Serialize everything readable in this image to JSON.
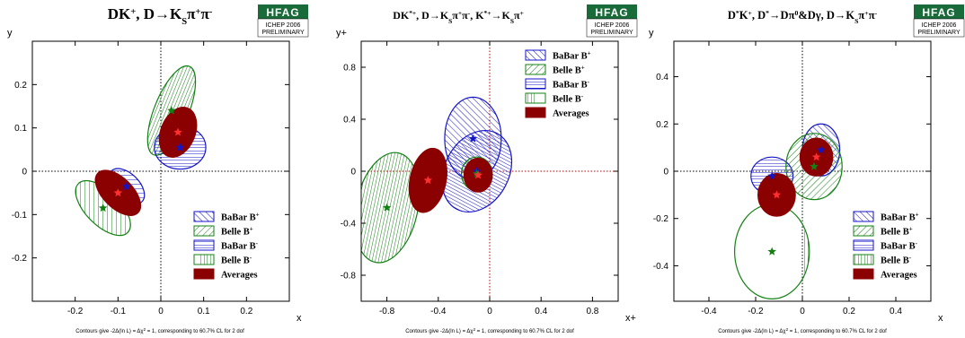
{
  "colors": {
    "babar": "#1515c8",
    "belle": "#148014",
    "average": "#8b0000",
    "axis_line_panel2": "#c00000"
  },
  "badge": {
    "logo": "HFAG",
    "conference": "ICHEP 2006",
    "status": "PRELIMINARY"
  },
  "footnote": {
    "prefix": "Contours give -2Δ(ln L) = Δχ",
    "sup": "2",
    "suffix": " = 1, corresponding to 60.7% CL for 2 dof"
  },
  "chart_data": [
    {
      "type": "scatter",
      "title_parts": [
        "DK",
        "+",
        ", D→K",
        "S",
        "π",
        "+",
        "π",
        "-"
      ],
      "xlabel": "x",
      "ylabel": "y",
      "xlim": [
        -0.3,
        0.3
      ],
      "ylim": [
        -0.3,
        0.3
      ],
      "xticks": [
        -0.2,
        -0.1,
        0,
        0.1,
        0.2
      ],
      "yticks": [
        -0.2,
        -0.1,
        0,
        0.1,
        0.2
      ],
      "legend": [
        "BaBar B+",
        "Belle B+",
        "BaBar B-",
        "Belle B-",
        "Averages"
      ],
      "legend_placement": "bottom-right",
      "series": [
        {
          "name": "BaBar B+",
          "x": -0.08,
          "y": -0.035,
          "rx": 0.03,
          "ry": 0.05,
          "angle": 45
        },
        {
          "name": "Belle B+",
          "x": -0.135,
          "y": -0.085,
          "rx": 0.04,
          "ry": 0.08,
          "angle": 45
        },
        {
          "name": "BaBar B-",
          "x": 0.045,
          "y": 0.055,
          "rx": 0.06,
          "ry": 0.05,
          "angle": 0
        },
        {
          "name": "Belle B-",
          "x": 0.025,
          "y": 0.14,
          "rx": 0.04,
          "ry": 0.11,
          "angle": -22
        },
        {
          "name": "Averages",
          "x": 0.04,
          "y": 0.09,
          "rx": 0.04,
          "ry": 0.06,
          "angle": -22
        },
        {
          "name": "Averages",
          "x": -0.1,
          "y": -0.05,
          "rx": 0.035,
          "ry": 0.065,
          "angle": 45
        }
      ]
    },
    {
      "type": "scatter",
      "title_parts": [
        "DK",
        "*+",
        ", D→K",
        "S",
        "π",
        "+",
        "π",
        "-",
        ", K",
        "*+",
        "→K",
        "S",
        "π",
        "+",
        "",
        ""
      ],
      "xlabel": "x+",
      "ylabel": "y+",
      "xlim": [
        -1.0,
        1.0
      ],
      "ylim": [
        -1.0,
        1.0
      ],
      "xticks": [
        -0.8,
        -0.4,
        0,
        0.4,
        0.8
      ],
      "yticks": [
        -0.8,
        -0.4,
        0,
        0.4,
        0.8
      ],
      "legend": [
        "BaBar B+",
        "Belle B+",
        "BaBar B-",
        "Belle B-",
        "Averages"
      ],
      "legend_placement": "top-right",
      "series": [
        {
          "name": "BaBar B+",
          "x": -0.13,
          "y": 0.25,
          "rx": 0.22,
          "ry": 0.32,
          "angle": 0
        },
        {
          "name": "Belle B+",
          "x": -0.1,
          "y": -0.02,
          "rx": 0.12,
          "ry": 0.13,
          "angle": 0
        },
        {
          "name": "BaBar B-",
          "x": -0.1,
          "y": 0,
          "rx": 0.25,
          "ry": 0.33,
          "angle": -28
        },
        {
          "name": "Belle B-",
          "x": -0.8,
          "y": -0.28,
          "rx": 0.24,
          "ry": 0.43,
          "angle": -12
        },
        {
          "name": "Averages",
          "x": -0.48,
          "y": -0.07,
          "rx": 0.14,
          "ry": 0.25,
          "angle": -12
        },
        {
          "name": "Averages",
          "x": -0.09,
          "y": -0.03,
          "rx": 0.11,
          "ry": 0.13,
          "angle": 0
        }
      ]
    },
    {
      "type": "scatter",
      "title_parts": [
        "D",
        "*",
        "K",
        "+",
        ", D",
        "*",
        "→Dπ",
        "0",
        "&Dγ, D→K",
        "S",
        "π",
        "+",
        "π",
        "-"
      ],
      "xlabel": "x",
      "ylabel": "y",
      "xlim": [
        -0.55,
        0.55
      ],
      "ylim": [
        -0.55,
        0.55
      ],
      "xticks": [
        -0.4,
        -0.2,
        0,
        0.2,
        0.4
      ],
      "yticks": [
        -0.4,
        -0.2,
        0,
        0.2,
        0.4
      ],
      "legend": [
        "BaBar B+",
        "Belle B+",
        "BaBar B-",
        "Belle B-",
        "Averages"
      ],
      "legend_placement": "bottom-right",
      "series": [
        {
          "name": "BaBar B+",
          "x": 0.08,
          "y": 0.09,
          "rx": 0.08,
          "ry": 0.11,
          "angle": 0
        },
        {
          "name": "Belle B+",
          "x": 0.05,
          "y": 0.02,
          "rx": 0.12,
          "ry": 0.14,
          "angle": 0
        },
        {
          "name": "BaBar B-",
          "x": -0.13,
          "y": -0.02,
          "rx": 0.09,
          "ry": 0.08,
          "angle": 0
        },
        {
          "name": "Belle B-",
          "x": -0.13,
          "y": -0.34,
          "rx": 0.16,
          "ry": 0.2,
          "angle": 0
        },
        {
          "name": "Averages",
          "x": 0.06,
          "y": 0.06,
          "rx": 0.07,
          "ry": 0.08,
          "angle": 0
        },
        {
          "name": "Averages",
          "x": -0.11,
          "y": -0.1,
          "rx": 0.08,
          "ry": 0.09,
          "angle": 0
        }
      ]
    }
  ]
}
